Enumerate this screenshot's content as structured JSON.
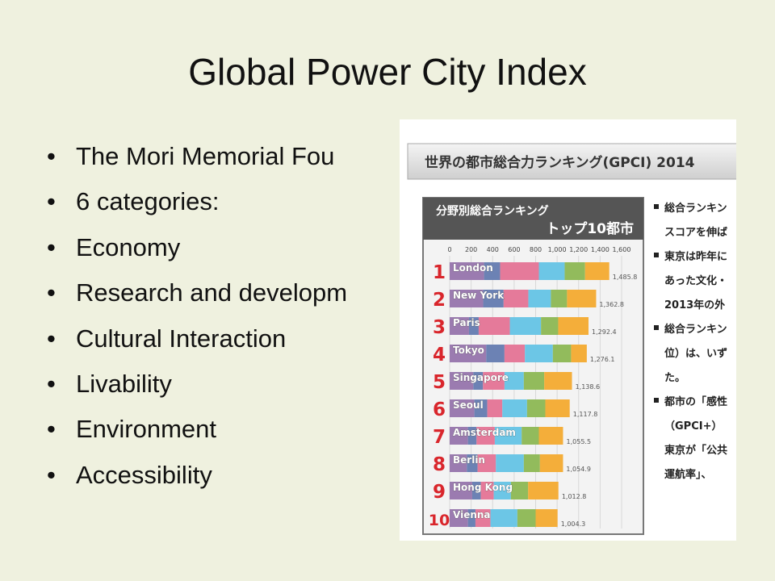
{
  "slide": {
    "title": "Global Power City Index",
    "bullets": [
      "The Mori Memorial Fou",
      "6 categories:",
      "Economy",
      "Research and developm",
      "Cultural Interaction",
      "Livability",
      "Environment",
      "Accessibility"
    ]
  },
  "image": {
    "header": "世界の都市総合力ランキング(GPCI) 2014",
    "right_text": [
      "総合ランキン",
      "スコアを伸ば",
      "東京は昨年に",
      "あった文化・",
      "2013年の外",
      "総合ランキン",
      "位）は、いず",
      "た。",
      "都市の「感性",
      "（GPCI+）",
      "東京が「公共",
      "運航率」、"
    ]
  },
  "chart_data": {
    "type": "bar",
    "orientation": "horizontal",
    "stacked": true,
    "title": "分野別総合ランキング",
    "subtitle": "トップ10都市",
    "categories": [
      "London",
      "New York",
      "Paris",
      "Tokyo",
      "Singapore",
      "Seoul",
      "Amsterdam",
      "Berlin",
      "Hong Kong",
      "Vienna"
    ],
    "ranks": [
      1,
      2,
      3,
      4,
      5,
      6,
      7,
      8,
      9,
      10
    ],
    "totals": [
      {
        "value": 1485.8,
        "label": "1,485.8"
      },
      {
        "value": 1362.8,
        "label": "1,362.8"
      },
      {
        "value": 1292.4,
        "label": "1,292.4"
      },
      {
        "value": 1276.1,
        "label": "1,276.1"
      },
      {
        "value": 1138.6,
        "label": "1,138.6"
      },
      {
        "value": 1117.8,
        "label": "1,117.8"
      },
      {
        "value": 1055.5,
        "label": "1,055.5"
      },
      {
        "value": 1054.9,
        "label": "1,054.9"
      },
      {
        "value": 1012.8,
        "label": "1,012.8"
      },
      {
        "value": 1004.3,
        "label": "1,004.3"
      }
    ],
    "xlim": [
      0,
      1600
    ],
    "xticks": [
      0,
      200,
      400,
      600,
      800,
      {
        "value": 1000,
        "label": "1,000"
      },
      {
        "value": 1200,
        "label": "1,200"
      },
      {
        "value": 1400,
        "label": "1,400"
      },
      {
        "value": 1600,
        "label": "1,600"
      }
    ],
    "grid": true,
    "series": [
      {
        "color": "#9b7bb0",
        "values": [
          320,
          312,
          180,
          340,
          220,
          230,
          170,
          160,
          210,
          170
        ]
      },
      {
        "color": "#6c82b4",
        "values": [
          150,
          190,
          90,
          170,
          90,
          120,
          80,
          100,
          80,
          70
        ]
      },
      {
        "color": "#e57a9a",
        "values": [
          360,
          230,
          290,
          190,
          200,
          140,
          170,
          170,
          120,
          140
        ]
      },
      {
        "color": "#6cc6e6",
        "values": [
          240,
          210,
          290,
          260,
          180,
          230,
          250,
          260,
          160,
          250
        ]
      },
      {
        "color": "#92bb5c",
        "values": [
          190,
          150,
          160,
          170,
          190,
          170,
          160,
          150,
          160,
          170
        ]
      },
      {
        "color": "#f4ae3a",
        "values": [
          225,
          271,
          282,
          146,
          258,
          227,
          225,
          215,
          282,
          204
        ]
      }
    ]
  }
}
